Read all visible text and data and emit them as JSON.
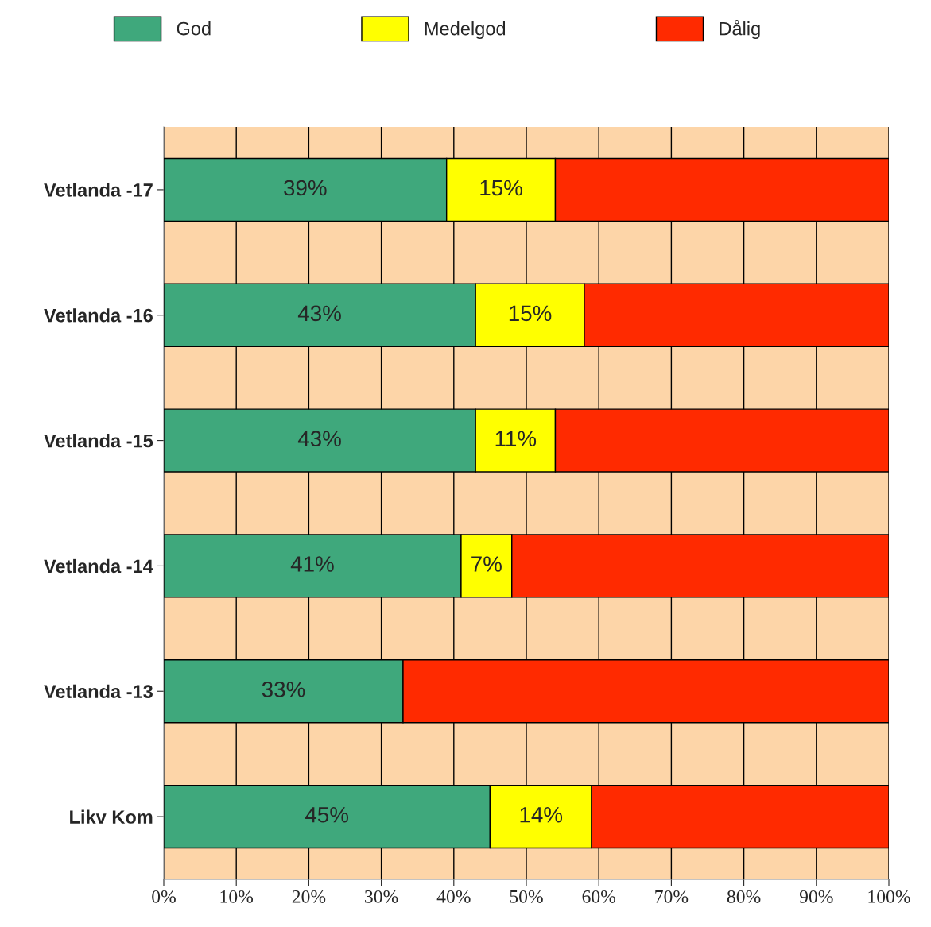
{
  "chart_data": {
    "type": "bar",
    "orientation": "horizontal",
    "stacked": true,
    "categories": [
      "Vetlanda -17",
      "Vetlanda -16",
      "Vetlanda -15",
      "Vetlanda -14",
      "Vetlanda -13",
      "Likv Kom"
    ],
    "series": [
      {
        "name": "God",
        "color": "#3fa87c",
        "values": [
          39,
          43,
          43,
          41,
          33,
          45
        ],
        "value_labels": [
          "39%",
          "43%",
          "43%",
          "41%",
          "33%",
          "45%"
        ]
      },
      {
        "name": "Medelgod",
        "color": "#ffff00",
        "values": [
          15,
          15,
          11,
          7,
          null,
          14
        ],
        "value_labels": [
          "15%",
          "15%",
          "11%",
          "7%",
          null,
          "14%"
        ]
      },
      {
        "name": "Dålig",
        "color": "#ff2a00",
        "values": [
          46,
          42,
          46,
          52,
          67,
          41
        ]
      }
    ],
    "xlim": [
      0,
      100
    ],
    "xticks": [
      {
        "value": 0,
        "label": "0%"
      },
      {
        "value": 10,
        "label": "10%"
      },
      {
        "value": 20,
        "label": "20%"
      },
      {
        "value": 30,
        "label": "30%"
      },
      {
        "value": 40,
        "label": "40%"
      },
      {
        "value": 50,
        "label": "50%"
      },
      {
        "value": 60,
        "label": "60%"
      },
      {
        "value": 70,
        "label": "70%"
      },
      {
        "value": 80,
        "label": "80%"
      },
      {
        "value": 90,
        "label": "90%"
      },
      {
        "value": 100,
        "label": "100%"
      }
    ],
    "grid": "x",
    "legend": "top"
  }
}
